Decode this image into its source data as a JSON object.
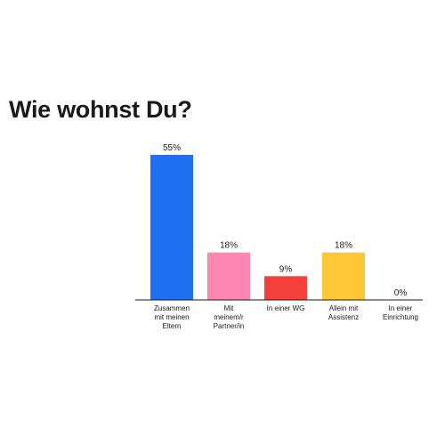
{
  "title": "Wie wohnst Du?",
  "chart_data": {
    "type": "bar",
    "title": "Wie wohnst Du?",
    "categories": [
      [
        "Zusammen",
        "mit meinen",
        "Eltern"
      ],
      [
        "Mit",
        "meinem/r",
        "Partner/in"
      ],
      [
        "In einer WG"
      ],
      [
        "Allein mit",
        "Assistenz"
      ],
      [
        "In einer",
        "Einrichtung"
      ]
    ],
    "values": [
      55,
      18,
      9,
      18,
      0
    ],
    "value_labels": [
      "55%",
      "18%",
      "9%",
      "18%",
      "0%"
    ],
    "colors": [
      "#1f6ff2",
      "#ff86b1",
      "#f4403d",
      "#ffc63a",
      "#ffffff"
    ],
    "axis_color": "#1a1a1a",
    "xlabel": "",
    "ylabel": "",
    "ylim": [
      0,
      55
    ],
    "grid": false,
    "legend": "none"
  }
}
